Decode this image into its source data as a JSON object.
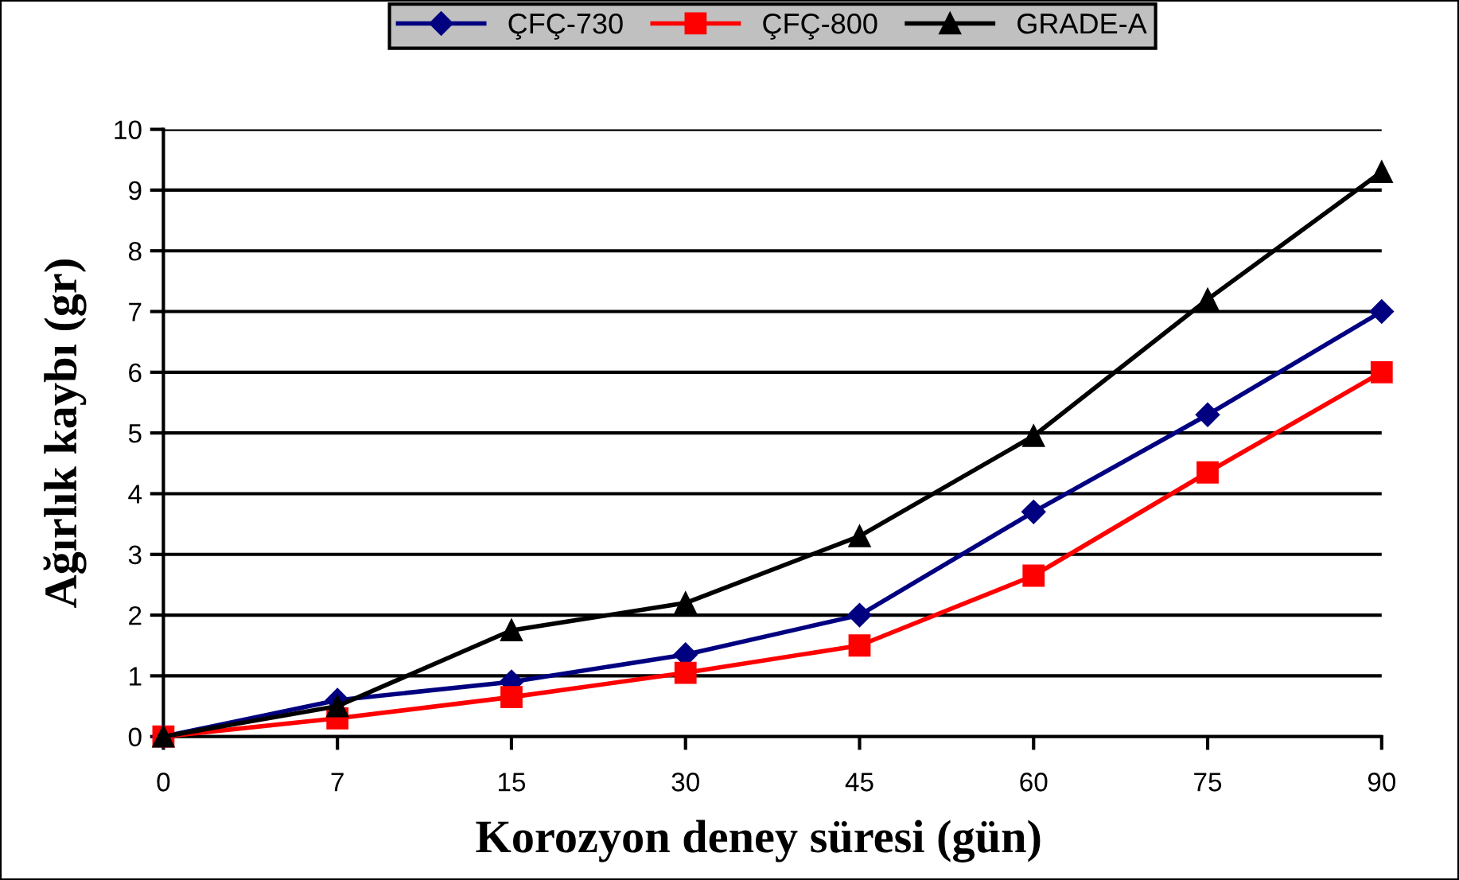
{
  "chart_data": {
    "type": "line",
    "xlabel": "Korozyon deney süresi (gün)",
    "ylabel": "Ağırlık kaybı (gr)",
    "categories": [
      "0",
      "7",
      "15",
      "30",
      "45",
      "60",
      "75",
      "90"
    ],
    "series": [
      {
        "name": "ÇFÇ-730",
        "color": "#000080",
        "marker": "diamond",
        "values": [
          0,
          0.6,
          0.9,
          1.35,
          2.0,
          3.7,
          5.3,
          7.0
        ]
      },
      {
        "name": "ÇFÇ-800",
        "color": "#ff0000",
        "marker": "square",
        "values": [
          0,
          0.3,
          0.65,
          1.05,
          1.5,
          2.65,
          4.35,
          6.0
        ]
      },
      {
        "name": "GRADE-A",
        "color": "#000000",
        "marker": "triangle",
        "values": [
          0,
          0.5,
          1.75,
          2.2,
          3.3,
          4.95,
          7.2,
          9.3
        ]
      }
    ],
    "ylim": [
      0,
      10
    ],
    "yticks": [
      0,
      1,
      2,
      3,
      4,
      5,
      6,
      7,
      8,
      9,
      10
    ],
    "grid": "y",
    "legend": "top",
    "line_style": "solid"
  }
}
